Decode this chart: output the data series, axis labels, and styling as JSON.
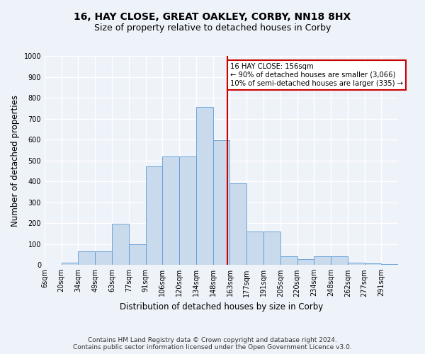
{
  "title": "16, HAY CLOSE, GREAT OAKLEY, CORBY, NN18 8HX",
  "subtitle": "Size of property relative to detached houses in Corby",
  "xlabel": "Distribution of detached houses by size in Corby",
  "ylabel": "Number of detached properties",
  "footer_line1": "Contains HM Land Registry data © Crown copyright and database right 2024.",
  "footer_line2": "Contains public sector information licensed under the Open Government Licence v3.0.",
  "bin_labels": [
    "6sqm",
    "20sqm",
    "34sqm",
    "49sqm",
    "63sqm",
    "77sqm",
    "91sqm",
    "106sqm",
    "120sqm",
    "134sqm",
    "148sqm",
    "163sqm",
    "177sqm",
    "191sqm",
    "205sqm",
    "220sqm",
    "234sqm",
    "248sqm",
    "262sqm",
    "277sqm",
    "291sqm"
  ],
  "bar_heights": [
    0,
    12,
    65,
    65,
    198,
    100,
    473,
    518,
    518,
    757,
    596,
    390,
    160,
    160,
    40,
    27,
    42,
    42,
    12,
    7,
    5
  ],
  "bar_color": "#c8daec",
  "bar_edge_color": "#5b9bd5",
  "vline_x_index": 10.857,
  "annotation_text": "16 HAY CLOSE: 156sqm\n← 90% of detached houses are smaller (3,066)\n10% of semi-detached houses are larger (335) →",
  "annotation_box_color": "#ffffff",
  "annotation_box_edge": "#cc0000",
  "vline_color": "#cc0000",
  "ylim": [
    0,
    1000
  ],
  "yticks": [
    0,
    100,
    200,
    300,
    400,
    500,
    600,
    700,
    800,
    900,
    1000
  ],
  "background_color": "#eef2f9",
  "grid_color": "#ffffff",
  "title_fontsize": 10,
  "subtitle_fontsize": 9,
  "axis_label_fontsize": 8.5,
  "tick_fontsize": 7,
  "footer_fontsize": 6.5
}
